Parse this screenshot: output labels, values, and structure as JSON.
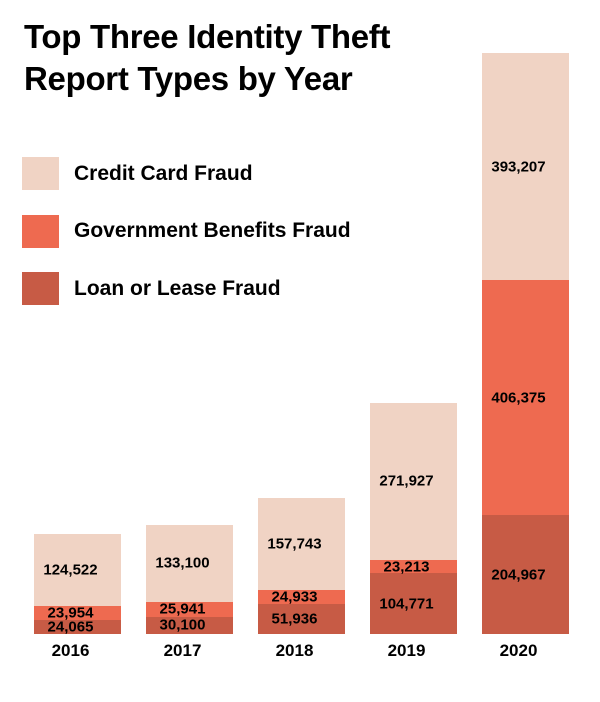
{
  "title": {
    "line1": "Top Three Identity Theft",
    "line2": "Report Types by Year"
  },
  "legend": {
    "items": [
      {
        "label": "Credit Card Fraud",
        "color": "#f0d3c4",
        "key": "credit-card-fraud"
      },
      {
        "label": "Government Benefits Fraud",
        "color": "#ee6a50",
        "key": "government-benefits-fraud"
      },
      {
        "label": "Loan or Lease Fraud",
        "color": "#c75b45",
        "key": "loan-or-lease-fraud"
      }
    ]
  },
  "chart_data": {
    "type": "bar",
    "stacked": true,
    "title": "Top Three Identity Theft Report Types by Year",
    "xlabel": "",
    "ylabel": "",
    "categories": [
      "2016",
      "2017",
      "2018",
      "2019",
      "2020"
    ],
    "series": [
      {
        "name": "Credit Card Fraud",
        "key": "credit-card-fraud",
        "color": "#f0d3c4",
        "values": [
          124522,
          133100,
          157743,
          271927,
          393207
        ],
        "labels": [
          "124,522",
          "133,100",
          "157,743",
          "271,927",
          "393,207"
        ]
      },
      {
        "name": "Government Benefits Fraud",
        "key": "government-benefits-fraud",
        "color": "#ee6a50",
        "values": [
          23954,
          25941,
          24933,
          23213,
          406375
        ],
        "labels": [
          "23,954",
          "25,941",
          "24,933",
          "23,213",
          "406,375"
        ]
      },
      {
        "name": "Loan or Lease Fraud",
        "key": "loan-or-lease-fraud",
        "color": "#c75b45",
        "values": [
          24065,
          30100,
          51936,
          104771,
          204967
        ],
        "labels": [
          "24,065",
          "30,100",
          "51,936",
          "104,771",
          "204,967"
        ]
      }
    ],
    "totals": [
      172541,
      189141,
      234612,
      399911,
      1004549
    ],
    "ylim": [
      0,
      1010000
    ],
    "grid": false,
    "axes_visible": false,
    "legend_position": "upper-left",
    "value_labels": "inside-center",
    "stack_order_bottom_to_top": [
      "Loan or Lease Fraud",
      "Government Benefits Fraud",
      "Credit Card Fraud"
    ]
  }
}
